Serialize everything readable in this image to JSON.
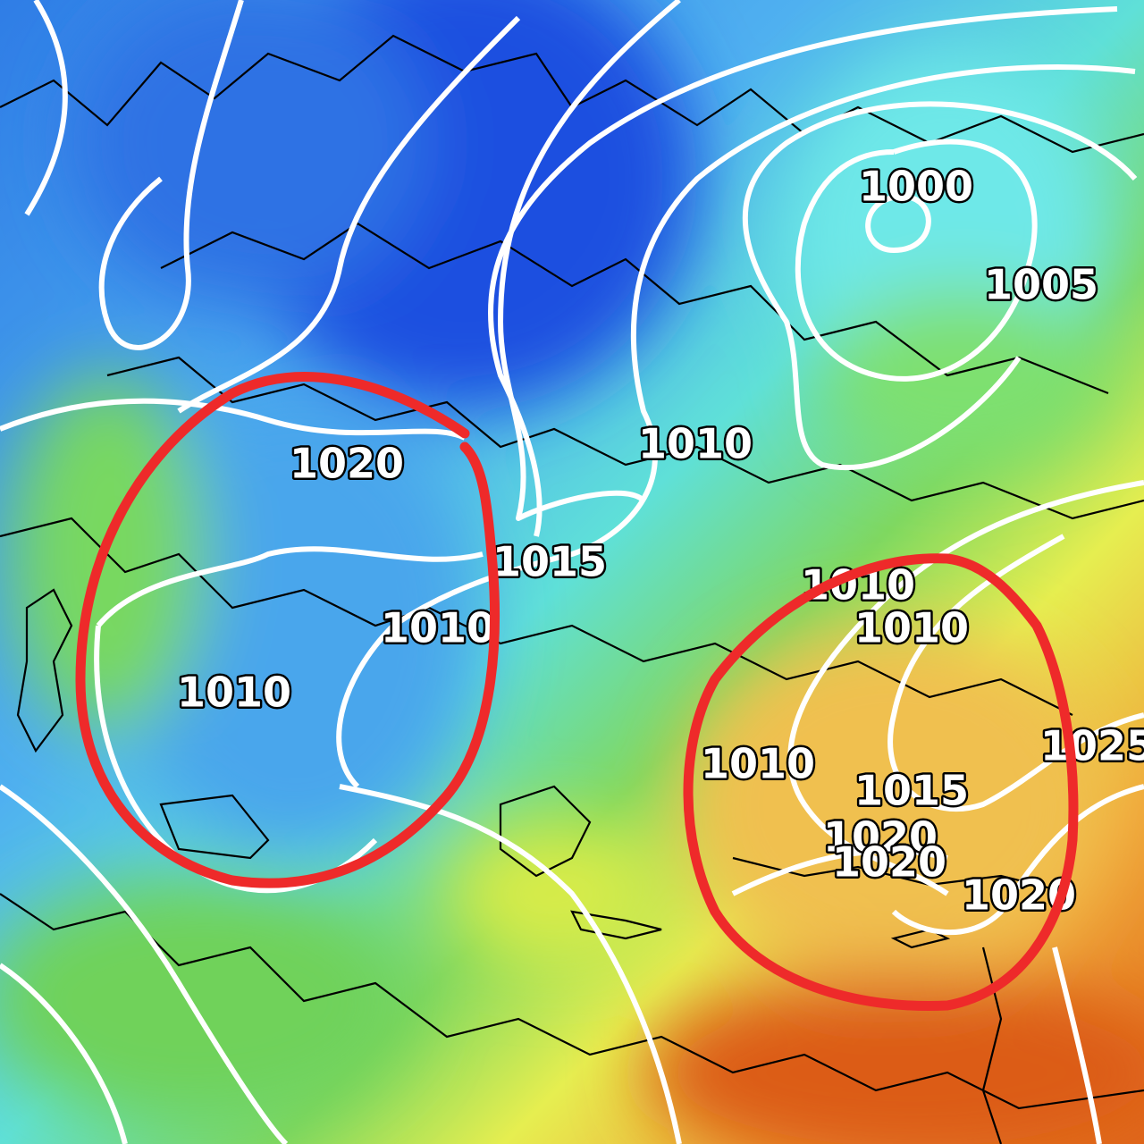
{
  "map": {
    "isobar_labels": [
      "1000",
      "1005",
      "1010",
      "1020",
      "1015",
      "1010",
      "1010",
      "1010",
      "1010",
      "1010",
      "1025",
      "1015",
      "1020",
      "1020",
      "1020"
    ]
  }
}
